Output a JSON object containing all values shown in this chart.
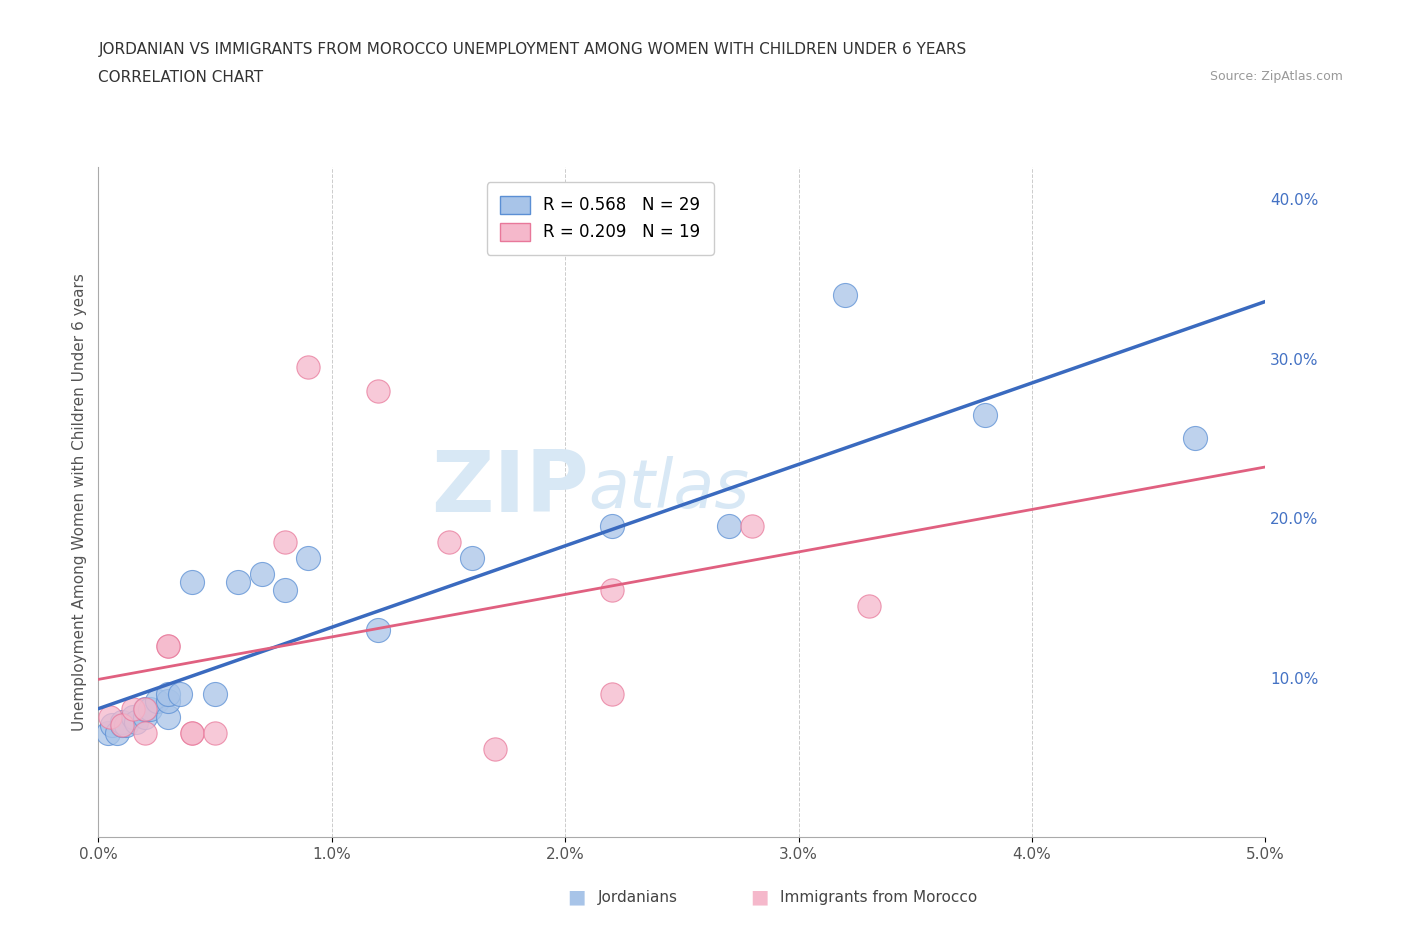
{
  "title_line1": "JORDANIAN VS IMMIGRANTS FROM MOROCCO UNEMPLOYMENT AMONG WOMEN WITH CHILDREN UNDER 6 YEARS",
  "title_line2": "CORRELATION CHART",
  "source": "Source: ZipAtlas.com",
  "ylabel": "Unemployment Among Women with Children Under 6 years",
  "xlim": [
    0.0,
    0.05
  ],
  "ylim": [
    0.0,
    0.42
  ],
  "xticks": [
    0.0,
    0.01,
    0.02,
    0.03,
    0.04,
    0.05
  ],
  "yticks": [
    0.1,
    0.2,
    0.3,
    0.4
  ],
  "xticklabels": [
    "0.0%",
    "1.0%",
    "2.0%",
    "3.0%",
    "4.0%",
    "5.0%"
  ],
  "yticklabels": [
    "10.0%",
    "20.0%",
    "30.0%",
    "40.0%"
  ],
  "blue_R": 0.568,
  "blue_N": 29,
  "pink_R": 0.209,
  "pink_N": 19,
  "legend_label_blue": "Jordanians",
  "legend_label_pink": "Immigrants from Morocco",
  "blue_scatter_color": "#a8c4e8",
  "pink_scatter_color": "#f5b8cb",
  "blue_edge_color": "#5b8fd4",
  "pink_edge_color": "#e8789a",
  "blue_line_color": "#3a6abf",
  "pink_line_color": "#e06080",
  "ytick_color": "#4472c4",
  "watermark_color": "#d8e8f5",
  "background_color": "#ffffff",
  "blue_x": [
    0.0004,
    0.0006,
    0.0008,
    0.001,
    0.001,
    0.0012,
    0.0015,
    0.0016,
    0.002,
    0.002,
    0.0022,
    0.0025,
    0.003,
    0.003,
    0.003,
    0.0035,
    0.004,
    0.005,
    0.006,
    0.007,
    0.008,
    0.009,
    0.012,
    0.016,
    0.022,
    0.027,
    0.032,
    0.038,
    0.047
  ],
  "blue_y": [
    0.065,
    0.07,
    0.065,
    0.07,
    0.072,
    0.07,
    0.075,
    0.072,
    0.075,
    0.08,
    0.08,
    0.085,
    0.075,
    0.085,
    0.09,
    0.09,
    0.16,
    0.09,
    0.16,
    0.165,
    0.155,
    0.175,
    0.13,
    0.175,
    0.195,
    0.195,
    0.34,
    0.265,
    0.25
  ],
  "pink_x": [
    0.0005,
    0.001,
    0.0015,
    0.002,
    0.002,
    0.003,
    0.003,
    0.004,
    0.004,
    0.005,
    0.008,
    0.009,
    0.012,
    0.015,
    0.017,
    0.022,
    0.022,
    0.028,
    0.033
  ],
  "pink_y": [
    0.075,
    0.07,
    0.08,
    0.08,
    0.065,
    0.12,
    0.12,
    0.065,
    0.065,
    0.065,
    0.185,
    0.295,
    0.28,
    0.185,
    0.055,
    0.09,
    0.155,
    0.195,
    0.145
  ]
}
